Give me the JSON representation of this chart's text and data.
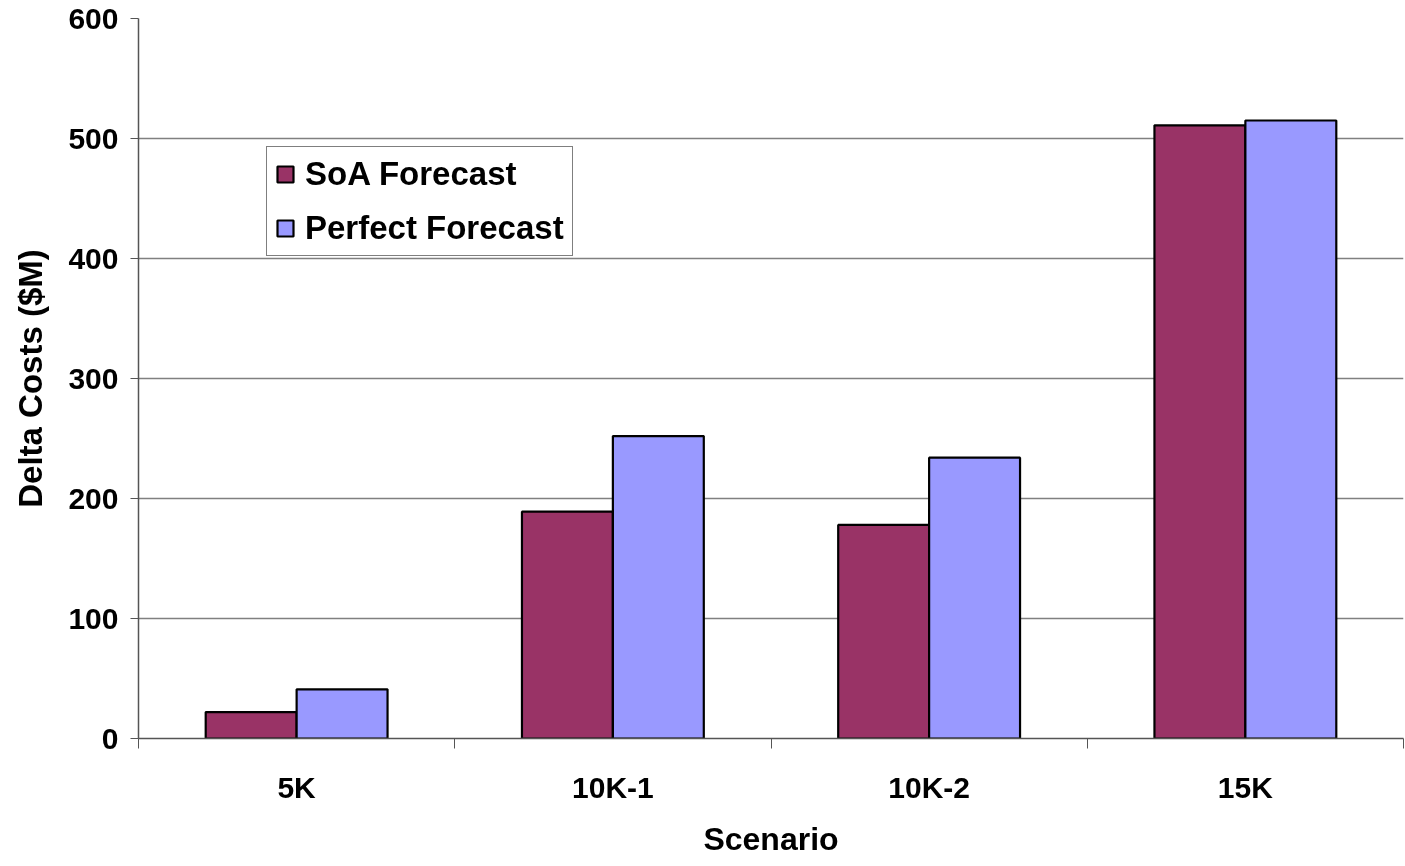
{
  "chart_data": {
    "type": "bar",
    "xlabel": "Scenario",
    "ylabel": "Delta Costs ($M)",
    "categories": [
      "5K",
      "10K-1",
      "10K-2",
      "15K"
    ],
    "series": [
      {
        "name": "SoA Forecast",
        "color": "#993366",
        "values": [
          22,
          189,
          178,
          511
        ]
      },
      {
        "name": "Perfect Forecast",
        "color": "#9999ff",
        "values": [
          41,
          252,
          234,
          515
        ]
      }
    ],
    "ylim": [
      0,
      600
    ],
    "yticks": [
      0,
      100,
      200,
      300,
      400,
      500,
      600
    ],
    "grid": "y",
    "legend": "top left"
  }
}
